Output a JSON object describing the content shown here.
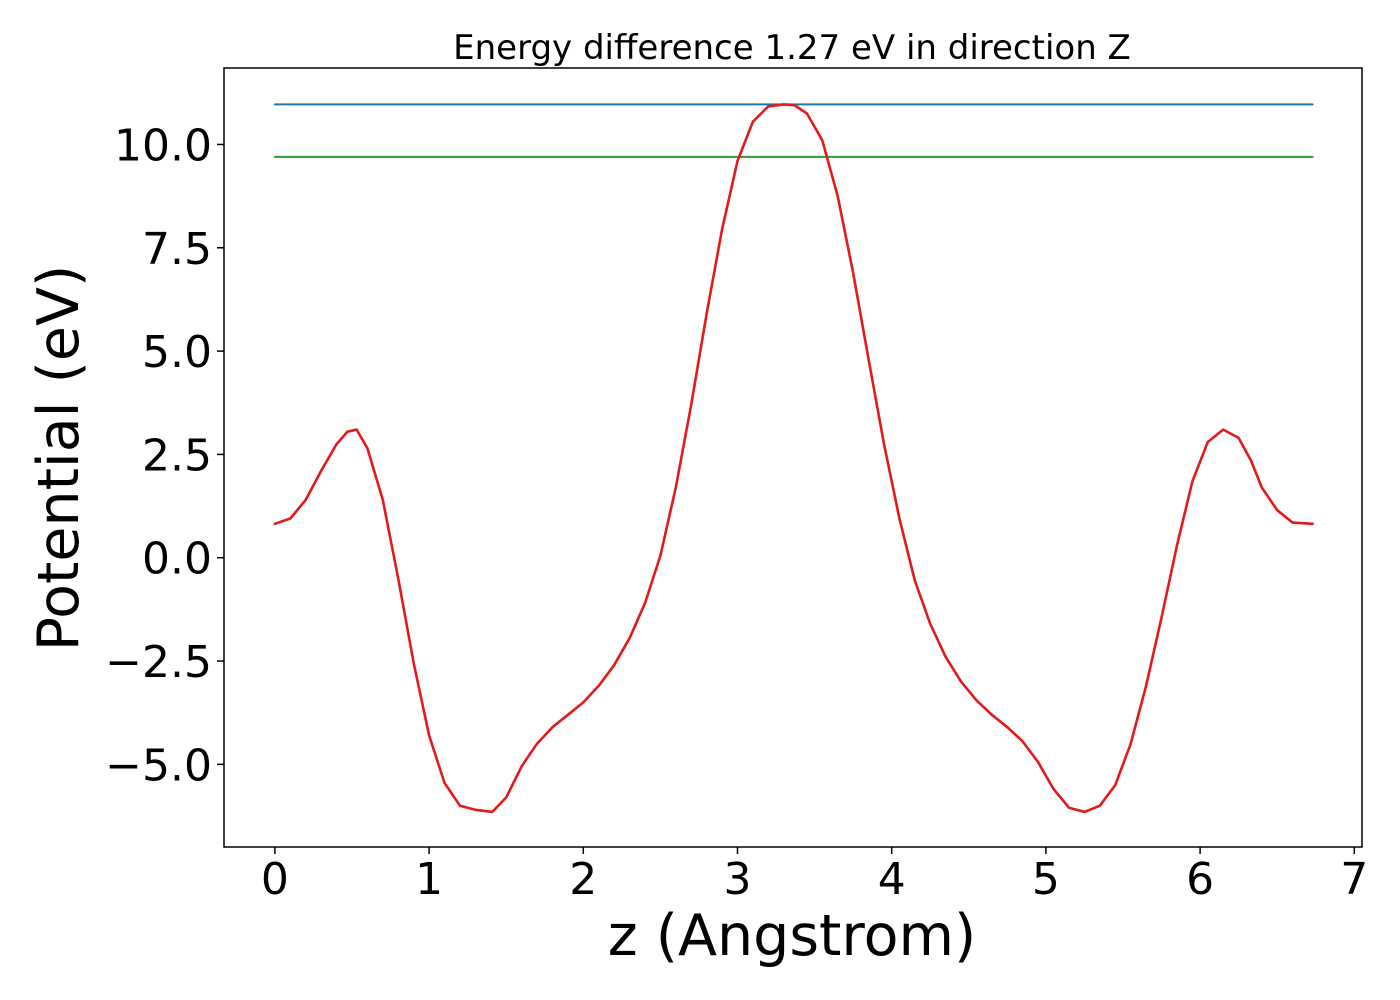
{
  "chart_data": {
    "type": "line",
    "title": "Energy difference 1.27 eV in direction Z",
    "xlabel": "z (Angstrom)",
    "ylabel": "Potential (eV)",
    "xlim": [
      -0.33,
      7.05
    ],
    "ylim": [
      -7.0,
      11.85
    ],
    "xticks": [
      0,
      1,
      2,
      3,
      4,
      5,
      6,
      7
    ],
    "xtick_labels": [
      "0",
      "1",
      "2",
      "3",
      "4",
      "5",
      "6",
      "7"
    ],
    "yticks": [
      -5.0,
      -2.5,
      0.0,
      2.5,
      5.0,
      7.5,
      10.0
    ],
    "ytick_labels": [
      "−5.0",
      "−2.5",
      "0.0",
      "2.5",
      "5.0",
      "7.5",
      "10.0"
    ],
    "grid": false,
    "series": [
      {
        "color": "#1f77b4",
        "x": [
          0,
          6.73
        ],
        "y": [
          10.97,
          10.97
        ]
      },
      {
        "color": "#2ca02c",
        "x": [
          0,
          6.73
        ],
        "y": [
          9.7,
          9.7
        ]
      },
      {
        "color": "#e31a1c",
        "x": [
          0,
          0.1,
          0.2,
          0.3,
          0.4,
          0.47,
          0.53,
          0.6,
          0.7,
          0.8,
          0.9,
          1.0,
          1.1,
          1.2,
          1.3,
          1.41,
          1.5,
          1.6,
          1.7,
          1.8,
          1.9,
          2.0,
          2.1,
          2.2,
          2.3,
          2.4,
          2.5,
          2.6,
          2.7,
          2.8,
          2.9,
          3.0,
          3.1,
          3.2,
          3.3,
          3.37,
          3.45,
          3.55,
          3.65,
          3.75,
          3.85,
          3.95,
          4.05,
          4.15,
          4.25,
          4.35,
          4.45,
          4.55,
          4.65,
          4.75,
          4.85,
          4.95,
          5.05,
          5.15,
          5.25,
          5.35,
          5.45,
          5.55,
          5.65,
          5.75,
          5.85,
          5.95,
          6.05,
          6.15,
          6.25,
          6.33,
          6.4,
          6.5,
          6.6,
          6.73
        ],
        "y": [
          0.82,
          0.95,
          1.4,
          2.1,
          2.75,
          3.05,
          3.1,
          2.65,
          1.4,
          -0.5,
          -2.55,
          -4.3,
          -5.45,
          -6.0,
          -6.1,
          -6.15,
          -5.8,
          -5.05,
          -4.5,
          -4.1,
          -3.8,
          -3.5,
          -3.1,
          -2.6,
          -1.95,
          -1.1,
          0.05,
          1.7,
          3.7,
          5.9,
          7.95,
          9.6,
          10.55,
          10.92,
          10.97,
          10.95,
          10.75,
          10.1,
          8.75,
          6.9,
          4.8,
          2.75,
          0.95,
          -0.55,
          -1.6,
          -2.4,
          -3.0,
          -3.45,
          -3.8,
          -4.1,
          -4.45,
          -4.95,
          -5.6,
          -6.05,
          -6.15,
          -6.0,
          -5.5,
          -4.5,
          -3.1,
          -1.45,
          0.3,
          1.85,
          2.8,
          3.1,
          2.9,
          2.35,
          1.7,
          1.15,
          0.85,
          0.82
        ]
      }
    ]
  }
}
